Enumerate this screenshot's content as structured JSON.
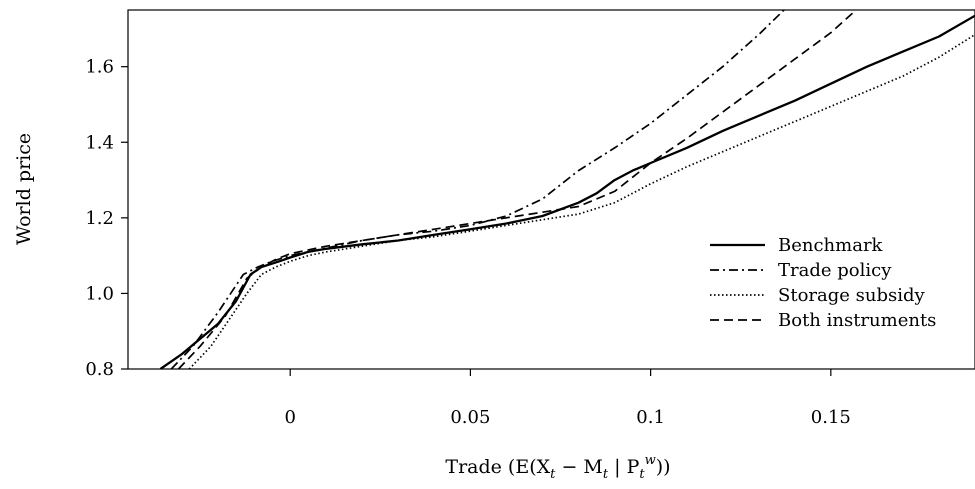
{
  "chart_data": {
    "type": "line",
    "title": "",
    "xlabel": "Trade (E(X_t − M_t | P_t^w))",
    "ylabel": "World price",
    "xlim": [
      -0.045,
      0.19
    ],
    "ylim": [
      0.8,
      1.75
    ],
    "x_ticks": [
      0,
      0.05,
      0.1,
      0.15
    ],
    "x_tick_labels": [
      "0",
      "0.05",
      "0.1",
      "0.15"
    ],
    "y_ticks": [
      0.8,
      1.0,
      1.2,
      1.4,
      1.6
    ],
    "y_tick_labels": [
      "0.8",
      "1.0",
      "1.2",
      "1.4",
      "1.6"
    ],
    "grid": false,
    "legend_position": "lower-right",
    "series": [
      {
        "name": "Benchmark",
        "line_style": "solid",
        "points": [
          [
            -0.036,
            0.8
          ],
          [
            -0.03,
            0.84
          ],
          [
            -0.02,
            0.92
          ],
          [
            -0.015,
            0.98
          ],
          [
            -0.011,
            1.05
          ],
          [
            -0.008,
            1.07
          ],
          [
            -0.003,
            1.085
          ],
          [
            0,
            1.095
          ],
          [
            0.005,
            1.11
          ],
          [
            0.01,
            1.118
          ],
          [
            0.02,
            1.13
          ],
          [
            0.03,
            1.14
          ],
          [
            0.04,
            1.155
          ],
          [
            0.05,
            1.17
          ],
          [
            0.06,
            1.185
          ],
          [
            0.07,
            1.205
          ],
          [
            0.08,
            1.24
          ],
          [
            0.085,
            1.265
          ],
          [
            0.09,
            1.3
          ],
          [
            0.095,
            1.325
          ],
          [
            0.1,
            1.345
          ],
          [
            0.11,
            1.385
          ],
          [
            0.12,
            1.43
          ],
          [
            0.13,
            1.47
          ],
          [
            0.14,
            1.51
          ],
          [
            0.15,
            1.555
          ],
          [
            0.16,
            1.6
          ],
          [
            0.17,
            1.64
          ],
          [
            0.18,
            1.68
          ],
          [
            0.19,
            1.735
          ]
        ]
      },
      {
        "name": "Trade policy",
        "line_style": "dashdot",
        "points": [
          [
            -0.033,
            0.8
          ],
          [
            -0.027,
            0.86
          ],
          [
            -0.02,
            0.95
          ],
          [
            -0.013,
            1.05
          ],
          [
            -0.009,
            1.07
          ],
          [
            -0.005,
            1.085
          ],
          [
            0,
            1.1
          ],
          [
            0.01,
            1.12
          ],
          [
            0.02,
            1.14
          ],
          [
            0.03,
            1.155
          ],
          [
            0.04,
            1.165
          ],
          [
            0.05,
            1.18
          ],
          [
            0.06,
            1.205
          ],
          [
            0.07,
            1.25
          ],
          [
            0.08,
            1.325
          ],
          [
            0.09,
            1.385
          ],
          [
            0.1,
            1.45
          ],
          [
            0.11,
            1.525
          ],
          [
            0.12,
            1.6
          ],
          [
            0.13,
            1.685
          ],
          [
            0.137,
            1.75
          ]
        ]
      },
      {
        "name": "Storage subsidy",
        "line_style": "dotted",
        "points": [
          [
            -0.028,
            0.8
          ],
          [
            -0.022,
            0.86
          ],
          [
            -0.017,
            0.93
          ],
          [
            -0.012,
            1.0
          ],
          [
            -0.008,
            1.05
          ],
          [
            -0.004,
            1.07
          ],
          [
            0,
            1.085
          ],
          [
            0.005,
            1.1
          ],
          [
            0.01,
            1.11
          ],
          [
            0.02,
            1.125
          ],
          [
            0.03,
            1.14
          ],
          [
            0.04,
            1.15
          ],
          [
            0.05,
            1.165
          ],
          [
            0.06,
            1.18
          ],
          [
            0.07,
            1.195
          ],
          [
            0.08,
            1.21
          ],
          [
            0.09,
            1.24
          ],
          [
            0.1,
            1.29
          ],
          [
            0.11,
            1.335
          ],
          [
            0.12,
            1.375
          ],
          [
            0.13,
            1.415
          ],
          [
            0.14,
            1.455
          ],
          [
            0.15,
            1.495
          ],
          [
            0.16,
            1.535
          ],
          [
            0.17,
            1.575
          ],
          [
            0.18,
            1.625
          ],
          [
            0.19,
            1.685
          ]
        ]
      },
      {
        "name": "Both instruments",
        "line_style": "dashed",
        "points": [
          [
            -0.031,
            0.8
          ],
          [
            -0.025,
            0.86
          ],
          [
            -0.018,
            0.94
          ],
          [
            -0.012,
            1.04
          ],
          [
            -0.008,
            1.07
          ],
          [
            -0.004,
            1.09
          ],
          [
            0,
            1.105
          ],
          [
            0.01,
            1.125
          ],
          [
            0.02,
            1.14
          ],
          [
            0.03,
            1.155
          ],
          [
            0.04,
            1.17
          ],
          [
            0.05,
            1.185
          ],
          [
            0.06,
            1.2
          ],
          [
            0.07,
            1.215
          ],
          [
            0.08,
            1.23
          ],
          [
            0.09,
            1.27
          ],
          [
            0.1,
            1.345
          ],
          [
            0.11,
            1.41
          ],
          [
            0.12,
            1.48
          ],
          [
            0.13,
            1.55
          ],
          [
            0.14,
            1.62
          ],
          [
            0.15,
            1.69
          ],
          [
            0.157,
            1.75
          ]
        ]
      }
    ]
  }
}
